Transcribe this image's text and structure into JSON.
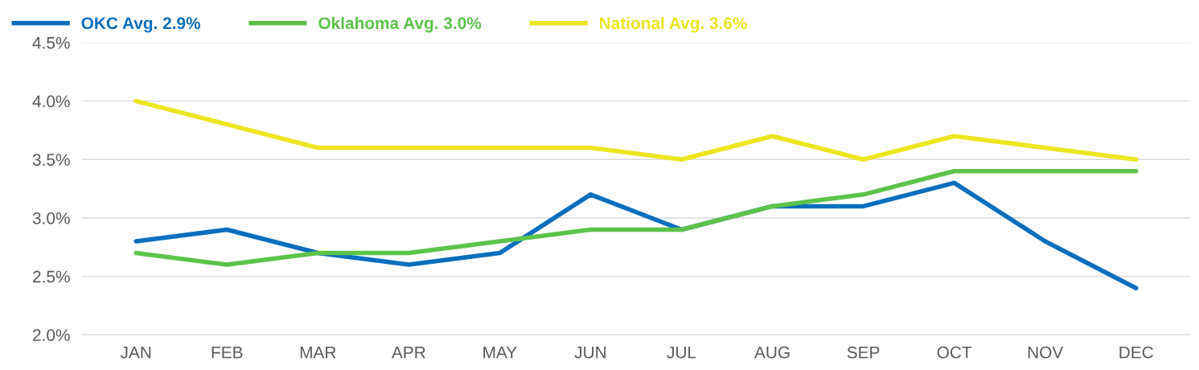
{
  "chart_data": {
    "type": "line",
    "categories": [
      "JAN",
      "FEB",
      "MAR",
      "APR",
      "MAY",
      "JUN",
      "JUL",
      "AUG",
      "SEP",
      "OCT",
      "NOV",
      "DEC"
    ],
    "series": [
      {
        "name": "OKC Avg. 2.9%",
        "color": "#0a6ebd",
        "values": [
          2.8,
          2.9,
          2.7,
          2.6,
          2.7,
          3.2,
          2.9,
          3.1,
          3.1,
          3.3,
          2.8,
          2.4
        ]
      },
      {
        "name": "Oklahoma Avg. 3.0%",
        "color": "#5cc34a",
        "values": [
          2.7,
          2.6,
          2.7,
          2.7,
          2.8,
          2.9,
          2.9,
          3.1,
          3.2,
          3.4,
          3.4,
          3.4
        ]
      },
      {
        "name": "National Avg. 3.6%",
        "color": "#ece520",
        "values": [
          4.0,
          3.8,
          3.6,
          3.6,
          3.6,
          3.6,
          3.5,
          3.7,
          3.5,
          3.7,
          3.6,
          3.5
        ]
      }
    ],
    "ylim": [
      2.0,
      4.5
    ],
    "yticks": [
      {
        "value": 2.0,
        "label": "2.0%"
      },
      {
        "value": 2.5,
        "label": "2.5%"
      },
      {
        "value": 3.0,
        "label": "3.0%"
      },
      {
        "value": 3.5,
        "label": "3.5%"
      },
      {
        "value": 4.0,
        "label": "4.0%"
      },
      {
        "value": 4.5,
        "label": "4.5%"
      }
    ],
    "grid": "y",
    "legend": "top left",
    "marker": "none",
    "line_style": "solid"
  }
}
